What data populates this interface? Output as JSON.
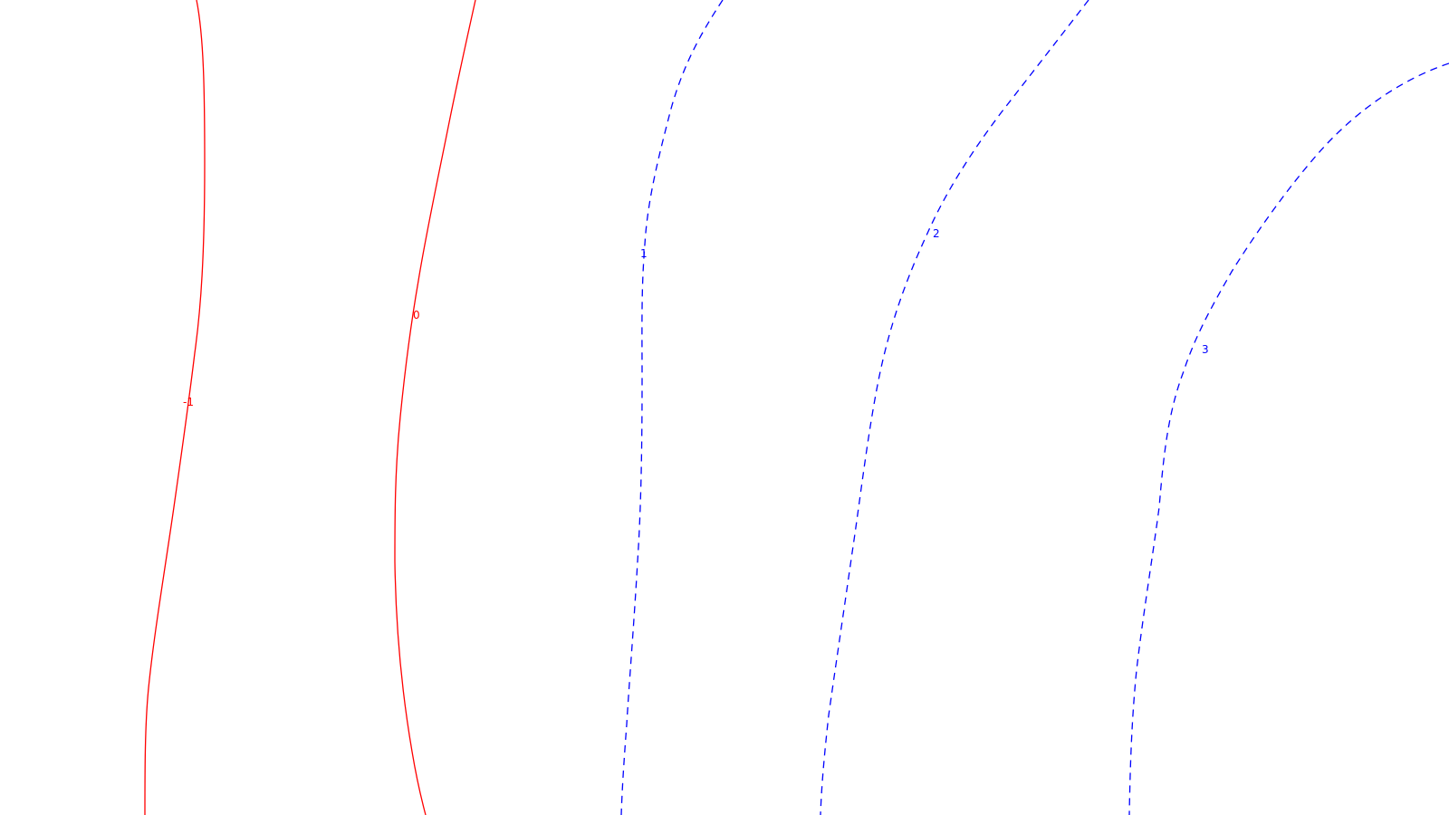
{
  "contours": [
    {
      "level": "-1",
      "color": "#ff0000",
      "style": "solid"
    },
    {
      "level": "0",
      "color": "#ff0000",
      "style": "solid"
    },
    {
      "level": "1",
      "color": "#0000ff",
      "style": "dashed"
    },
    {
      "level": "2",
      "color": "#0000ff",
      "style": "dashed"
    },
    {
      "level": "3",
      "color": "#0000ff",
      "style": "dashed"
    }
  ]
}
